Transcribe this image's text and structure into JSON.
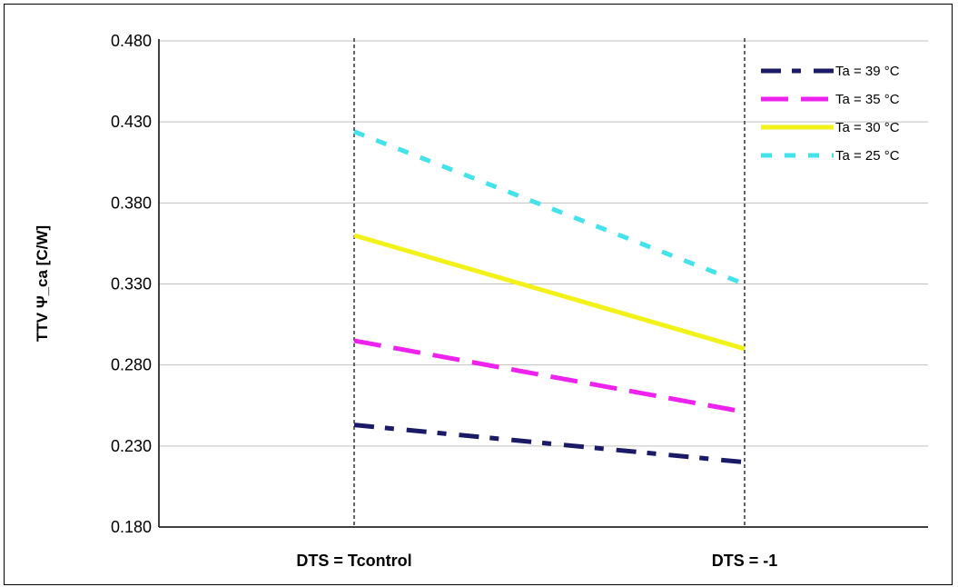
{
  "chart_data": {
    "type": "line",
    "title": "",
    "xlabel": "",
    "ylabel": "TTV Ψ_ca [C/W]",
    "categories": [
      "DTS = Tcontrol",
      "DTS = -1"
    ],
    "yticks": [
      "0.480",
      "0.430",
      "0.380",
      "0.330",
      "0.280",
      "0.230",
      "0.180"
    ],
    "ylim": [
      0.18,
      0.48
    ],
    "grid": "horizontal",
    "legend_position": "top-right",
    "series": [
      {
        "name": "Ta = 39 °C",
        "values": [
          0.243,
          0.22
        ],
        "color": "#1a1a66",
        "style": "dash-dot"
      },
      {
        "name": "Ta = 35 °C",
        "values": [
          0.295,
          0.251
        ],
        "color": "#ee22ee",
        "style": "dashed"
      },
      {
        "name": "Ta = 30 °C",
        "values": [
          0.36,
          0.29
        ],
        "color": "#f2f21a",
        "style": "solid"
      },
      {
        "name": "Ta = 25 °C",
        "values": [
          0.424,
          0.33
        ],
        "color": "#44e2ea",
        "style": "dotted"
      }
    ]
  }
}
